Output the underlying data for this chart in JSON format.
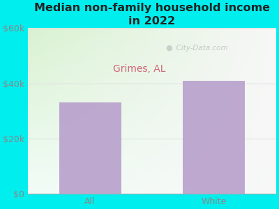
{
  "title": "Median non-family household income\nin 2022",
  "subtitle": "Grimes, AL",
  "categories": [
    "All",
    "White"
  ],
  "values": [
    33000,
    41000
  ],
  "bar_color": "#b8a0cc",
  "ylim": [
    0,
    60000
  ],
  "yticks": [
    0,
    20000,
    40000,
    60000
  ],
  "ytick_labels": [
    "$0",
    "$20k",
    "$40k",
    "$60k"
  ],
  "bg_outer": "#00EEEE",
  "bg_plot_topleft": "#d8f0d0",
  "bg_plot_right": "#f8f8f8",
  "title_color": "#222222",
  "subtitle_color": "#cc6677",
  "tick_color": "#888888",
  "grid_color": "#dddddd",
  "watermark": "  City-Data.com",
  "title_fontsize": 11.5,
  "subtitle_fontsize": 10,
  "tick_fontsize": 9
}
